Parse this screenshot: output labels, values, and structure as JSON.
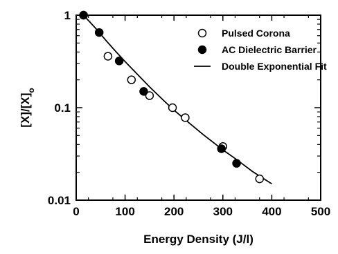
{
  "chart_data": {
    "type": "scatter",
    "xlabel": "Energy Density (J/l)",
    "ylabel": "[X]/[X]o",
    "ylabel_main": "[X]/[X]",
    "ylabel_sub": "o",
    "xlim": [
      0,
      500
    ],
    "ylim": [
      0.01,
      1
    ],
    "yscale": "log",
    "grid": false,
    "legend_position": "top-right",
    "x_ticks": [
      0,
      100,
      200,
      300,
      400,
      500
    ],
    "x_tick_labels": [
      "0",
      "100",
      "200",
      "300",
      "400",
      "500"
    ],
    "y_ticks": [
      0.01,
      0.1,
      1
    ],
    "y_tick_labels": [
      "0.01",
      "0.1",
      "1"
    ],
    "series": [
      {
        "name": "Pulsed Corona",
        "marker": "open-circle",
        "points": [
          [
            15,
            1.0
          ],
          [
            65,
            0.36
          ],
          [
            113,
            0.2
          ],
          [
            150,
            0.135
          ],
          [
            197,
            0.1
          ],
          [
            223,
            0.078
          ],
          [
            300,
            0.038
          ],
          [
            375,
            0.017
          ]
        ]
      },
      {
        "name": "AC Dielectric Barrier",
        "marker": "filled-circle",
        "points": [
          [
            15,
            1.0
          ],
          [
            47,
            0.65
          ],
          [
            88,
            0.32
          ],
          [
            138,
            0.15
          ],
          [
            297,
            0.036
          ],
          [
            328,
            0.025
          ]
        ]
      },
      {
        "name": "Double Exponential Fit",
        "marker": "line",
        "points": [
          [
            15,
            1.0
          ],
          [
            40,
            0.72
          ],
          [
            60,
            0.54
          ],
          [
            80,
            0.41
          ],
          [
            100,
            0.315
          ],
          [
            120,
            0.245
          ],
          [
            150,
            0.168
          ],
          [
            180,
            0.118
          ],
          [
            200,
            0.094
          ],
          [
            230,
            0.069
          ],
          [
            260,
            0.051
          ],
          [
            300,
            0.035
          ],
          [
            330,
            0.027
          ],
          [
            360,
            0.0205
          ],
          [
            400,
            0.015
          ]
        ]
      }
    ]
  }
}
